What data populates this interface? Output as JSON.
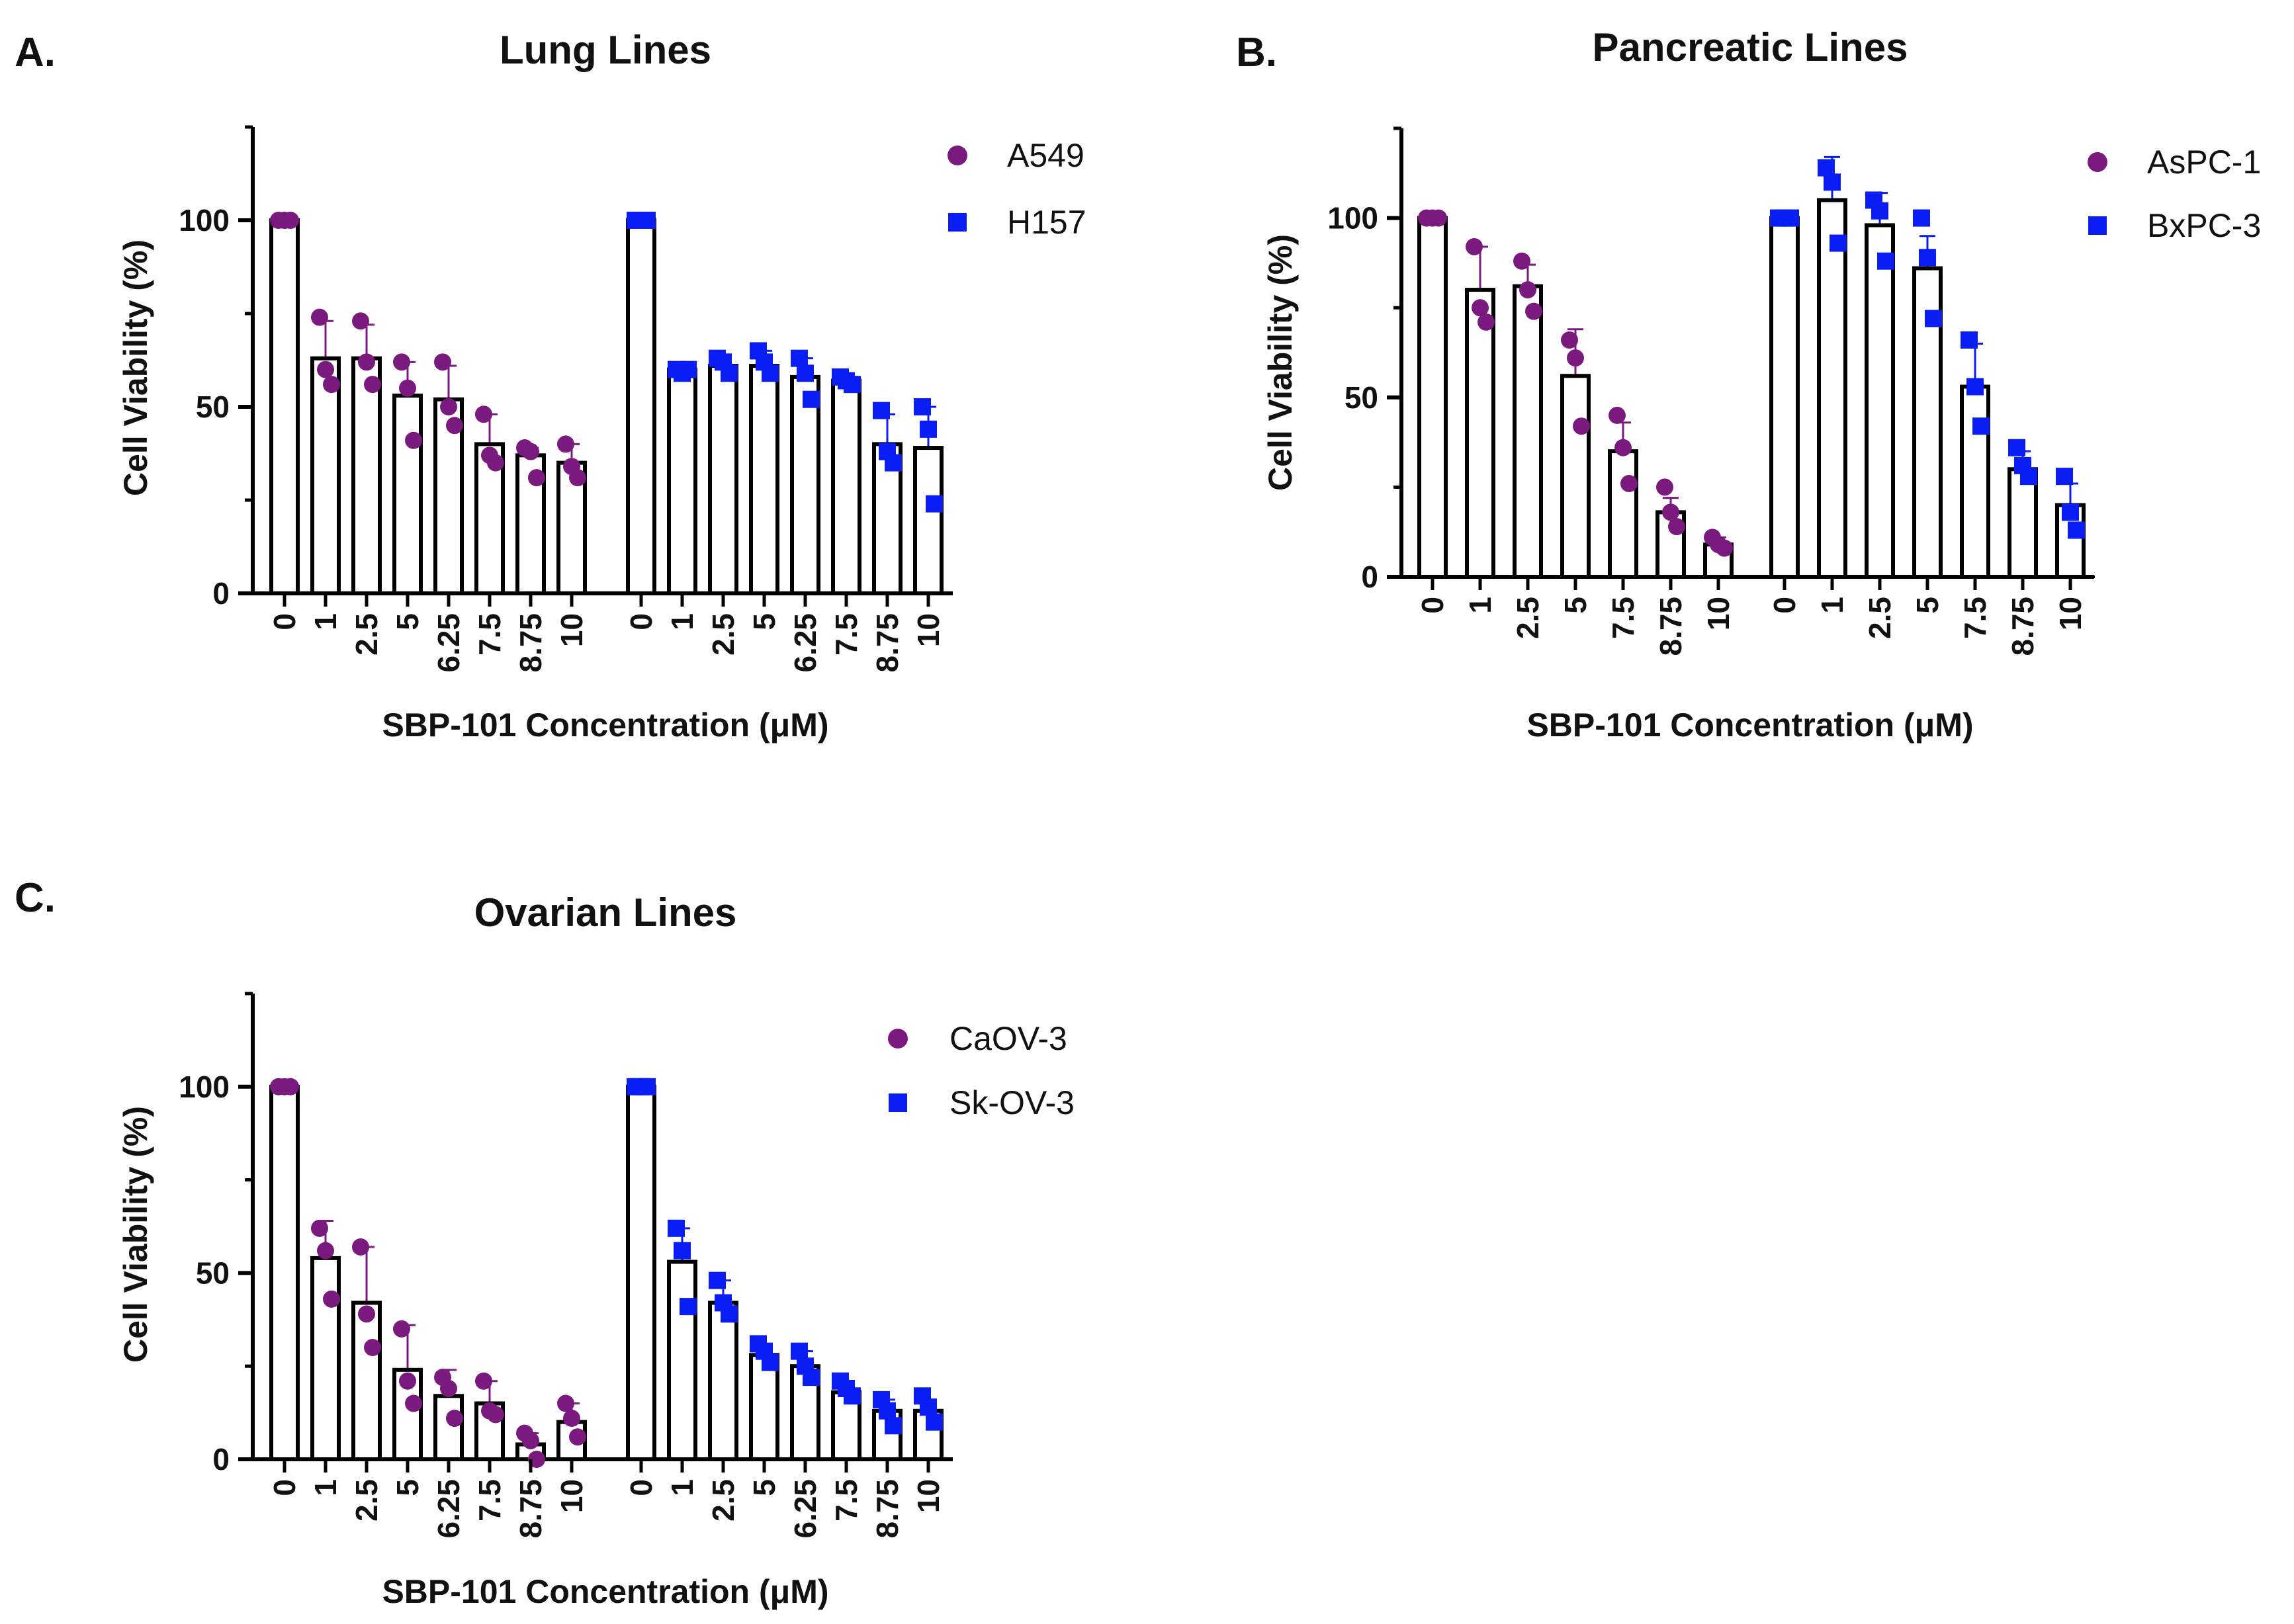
{
  "colors": {
    "purple": "#7b1a7e",
    "blue": "#0a1df5",
    "bar_edge": "#000000"
  },
  "chart_data": [
    {
      "panel_label": "A.",
      "type": "bar",
      "title": "Lung Lines",
      "xlabel": "SBP-101 Concentration (μM)",
      "ylabel": "Cell Viability (%)",
      "ylim": [
        0,
        125
      ],
      "yticks": [
        0,
        50,
        100
      ],
      "zero_line": false,
      "legend_position": "top-right",
      "series": [
        {
          "name": "A549",
          "marker": "circle",
          "color": "#7b1a7e",
          "categories": [
            "0",
            "1",
            "2.5",
            "5",
            "6.25",
            "7.5",
            "8.75",
            "10"
          ],
          "values": [
            100,
            63,
            63,
            53,
            52,
            40,
            37,
            35
          ],
          "error_plus": [
            0,
            10,
            9,
            9,
            9,
            8,
            2,
            5
          ],
          "points": [
            [
              100,
              100,
              100
            ],
            [
              74,
              60,
              56
            ],
            [
              73,
              62,
              56
            ],
            [
              62,
              55,
              41
            ],
            [
              62,
              50,
              45
            ],
            [
              48,
              37,
              35
            ],
            [
              39,
              38,
              31
            ],
            [
              40,
              34,
              31
            ]
          ]
        },
        {
          "name": "H157",
          "marker": "square",
          "color": "#0a1df5",
          "categories": [
            "0",
            "1",
            "2.5",
            "5",
            "6.25",
            "7.5",
            "8.75",
            "10"
          ],
          "values": [
            100,
            60,
            61,
            61,
            58,
            57,
            40,
            39
          ],
          "error_plus": [
            0,
            1,
            3,
            4,
            5,
            2,
            8,
            11
          ],
          "points": [
            [
              100,
              100,
              100
            ],
            [
              60,
              59,
              60
            ],
            [
              63,
              62,
              59
            ],
            [
              65,
              62,
              59
            ],
            [
              63,
              59,
              52
            ],
            [
              58,
              57,
              56
            ],
            [
              49,
              38,
              35
            ],
            [
              50,
              44,
              24
            ]
          ]
        }
      ]
    },
    {
      "panel_label": "B.",
      "type": "bar",
      "title": "Pancreatic Lines",
      "xlabel": "SBP-101 Concentration (μM)",
      "ylabel": "Cell Viability (%)",
      "ylim": [
        0,
        125
      ],
      "yticks": [
        0,
        50,
        100
      ],
      "zero_line": true,
      "legend_position": "top-right",
      "series": [
        {
          "name": "AsPC-1",
          "marker": "circle",
          "color": "#7b1a7e",
          "categories": [
            "0",
            "1",
            "2.5",
            "5",
            "7.5",
            "8.75",
            "10"
          ],
          "values": [
            100,
            80,
            81,
            56,
            35,
            18,
            9
          ],
          "error_plus": [
            0,
            12,
            6,
            13,
            8,
            4,
            2
          ],
          "points": [
            [
              100,
              100,
              100
            ],
            [
              92,
              75,
              71
            ],
            [
              88,
              80,
              74
            ],
            [
              66,
              61,
              42
            ],
            [
              45,
              36,
              26
            ],
            [
              25,
              18,
              14
            ],
            [
              11,
              9,
              8
            ]
          ]
        },
        {
          "name": "BxPC-3",
          "marker": "square",
          "color": "#0a1df5",
          "categories": [
            "0",
            "1",
            "2.5",
            "5",
            "7.5",
            "8.75",
            "10"
          ],
          "values": [
            100,
            105,
            98,
            86,
            53,
            30,
            20
          ],
          "error_plus": [
            0,
            12,
            9,
            9,
            12,
            5,
            6
          ],
          "points": [
            [
              100,
              100,
              100
            ],
            [
              114,
              110,
              93
            ],
            [
              105,
              102,
              88
            ],
            [
              100,
              89,
              72
            ],
            [
              66,
              53,
              42
            ],
            [
              36,
              31,
              28
            ],
            [
              28,
              18,
              13
            ]
          ]
        }
      ]
    },
    {
      "panel_label": "C.",
      "type": "bar",
      "title": "Ovarian Lines",
      "xlabel": "SBP-101 Concentration (μM)",
      "ylabel": "Cell Viability (%)",
      "ylim": [
        0,
        125
      ],
      "yticks": [
        0,
        50,
        100
      ],
      "zero_line": false,
      "legend_position": "top-right",
      "series": [
        {
          "name": "CaOV-3",
          "marker": "circle",
          "color": "#7b1a7e",
          "categories": [
            "0",
            "1",
            "2.5",
            "5",
            "6.25",
            "7.5",
            "8.75",
            "10"
          ],
          "values": [
            100,
            54,
            42,
            24,
            17,
            15,
            4,
            10
          ],
          "error_plus": [
            0,
            10,
            15,
            12,
            7,
            6,
            3,
            5
          ],
          "points": [
            [
              100,
              100,
              100
            ],
            [
              62,
              56,
              43
            ],
            [
              57,
              39,
              30
            ],
            [
              35,
              21,
              15
            ],
            [
              22,
              19,
              11
            ],
            [
              21,
              13,
              12
            ],
            [
              7,
              5,
              0
            ],
            [
              15,
              11,
              6
            ]
          ]
        },
        {
          "name": "Sk-OV-3",
          "marker": "square",
          "color": "#0a1df5",
          "categories": [
            "0",
            "1",
            "2.5",
            "5",
            "6.25",
            "7.5",
            "8.75",
            "10"
          ],
          "values": [
            100,
            53,
            42,
            28,
            25,
            18,
            13,
            13
          ],
          "error_plus": [
            0,
            9,
            6,
            3,
            4,
            3,
            3,
            3
          ],
          "points": [
            [
              100,
              100,
              100
            ],
            [
              62,
              56,
              41
            ],
            [
              48,
              42,
              39
            ],
            [
              31,
              29,
              26
            ],
            [
              29,
              25,
              22
            ],
            [
              21,
              19,
              17
            ],
            [
              16,
              13,
              9
            ],
            [
              17,
              14,
              10
            ]
          ]
        }
      ]
    }
  ]
}
